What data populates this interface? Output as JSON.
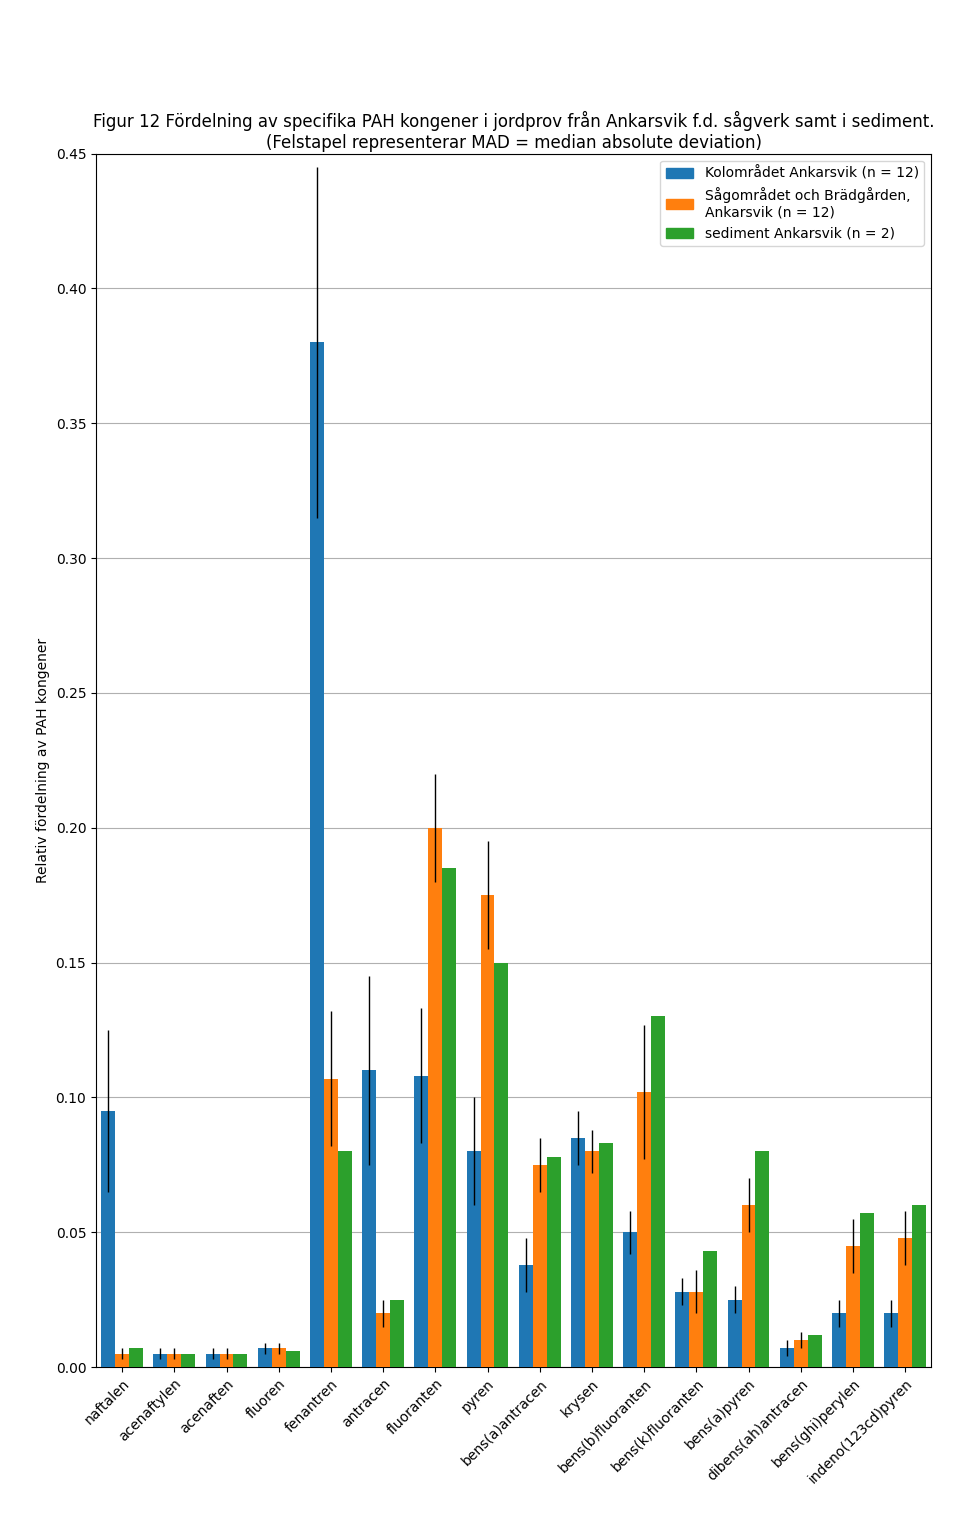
{
  "chart_data": {
    "type": "bar",
    "title": "Figur 12 Fördelning av specifika PAH kongener i jordprov från Ankarsvik f.d. sågverk samt i sediment. (Felstapel representerar MAD = median absolute deviation)",
    "categories": [
      "naftalen",
      "acenaftylen",
      "acenaften",
      "fluoren",
      "fenantren",
      "antracen",
      "fluoranten",
      "pyren",
      "bens(a)antracen",
      "krysen",
      "bens(b)fluoranten",
      "bens(k)fluoranten",
      "bens(a)pyren",
      "dibens(ah)antracen",
      "bens(ghi)perylen",
      "indeno(123cd)pyren"
    ],
    "series": [
      {
        "name": "Kolområdet Ankarsvik (n = 12)",
        "values": [
          0.095,
          0.005,
          0.005,
          0.007,
          0.38,
          0.11,
          0.108,
          0.08,
          0.038,
          0.085,
          0.05,
          0.028,
          0.025,
          0.007,
          0.02,
          0.02
        ],
        "errors": [
          0.03,
          0.002,
          0.002,
          0.002,
          0.065,
          0.035,
          0.025,
          0.02,
          0.01,
          0.01,
          0.008,
          0.005,
          0.005,
          0.003,
          0.005,
          0.005
        ]
      },
      {
        "name": "Sågområdet och Brädgården,\nAnkarsvik (n = 12)",
        "values": [
          0.005,
          0.005,
          0.005,
          0.007,
          0.107,
          0.02,
          0.2,
          0.175,
          0.075,
          0.08,
          0.102,
          0.028,
          0.06,
          0.01,
          0.045,
          0.048
        ],
        "errors": [
          0.002,
          0.002,
          0.002,
          0.002,
          0.025,
          0.005,
          0.02,
          0.02,
          0.01,
          0.008,
          0.025,
          0.008,
          0.01,
          0.003,
          0.01,
          0.01
        ]
      },
      {
        "name": "sediment Ankarsvik (n = 2)",
        "values": [
          0.007,
          0.005,
          0.005,
          0.006,
          0.08,
          0.025,
          0.185,
          0.15,
          0.078,
          0.083,
          0.13,
          0.043,
          0.08,
          0.012,
          0.057,
          0.06
        ]
      }
    ],
    "ylabel": "Relativ fördelning av PAH kongener",
    "ylim": [
      0,
      0.45
    ],
    "yticks": [
      {
        "value": 0.0,
        "label": "0.00"
      },
      {
        "value": 0.05,
        "label": "0.05"
      },
      {
        "value": 0.1,
        "label": "0.10"
      },
      {
        "value": 0.15,
        "label": "0.15"
      },
      {
        "value": 0.2,
        "label": "0.20"
      },
      {
        "value": 0.25,
        "label": "0.25"
      },
      {
        "value": 0.3,
        "label": "0.30"
      },
      {
        "value": 0.35,
        "label": "0.35"
      },
      {
        "value": 0.4,
        "label": "0.40"
      },
      {
        "value": 0.45,
        "label": "0.45"
      }
    ],
    "grid": true,
    "legend": "upper right"
  }
}
